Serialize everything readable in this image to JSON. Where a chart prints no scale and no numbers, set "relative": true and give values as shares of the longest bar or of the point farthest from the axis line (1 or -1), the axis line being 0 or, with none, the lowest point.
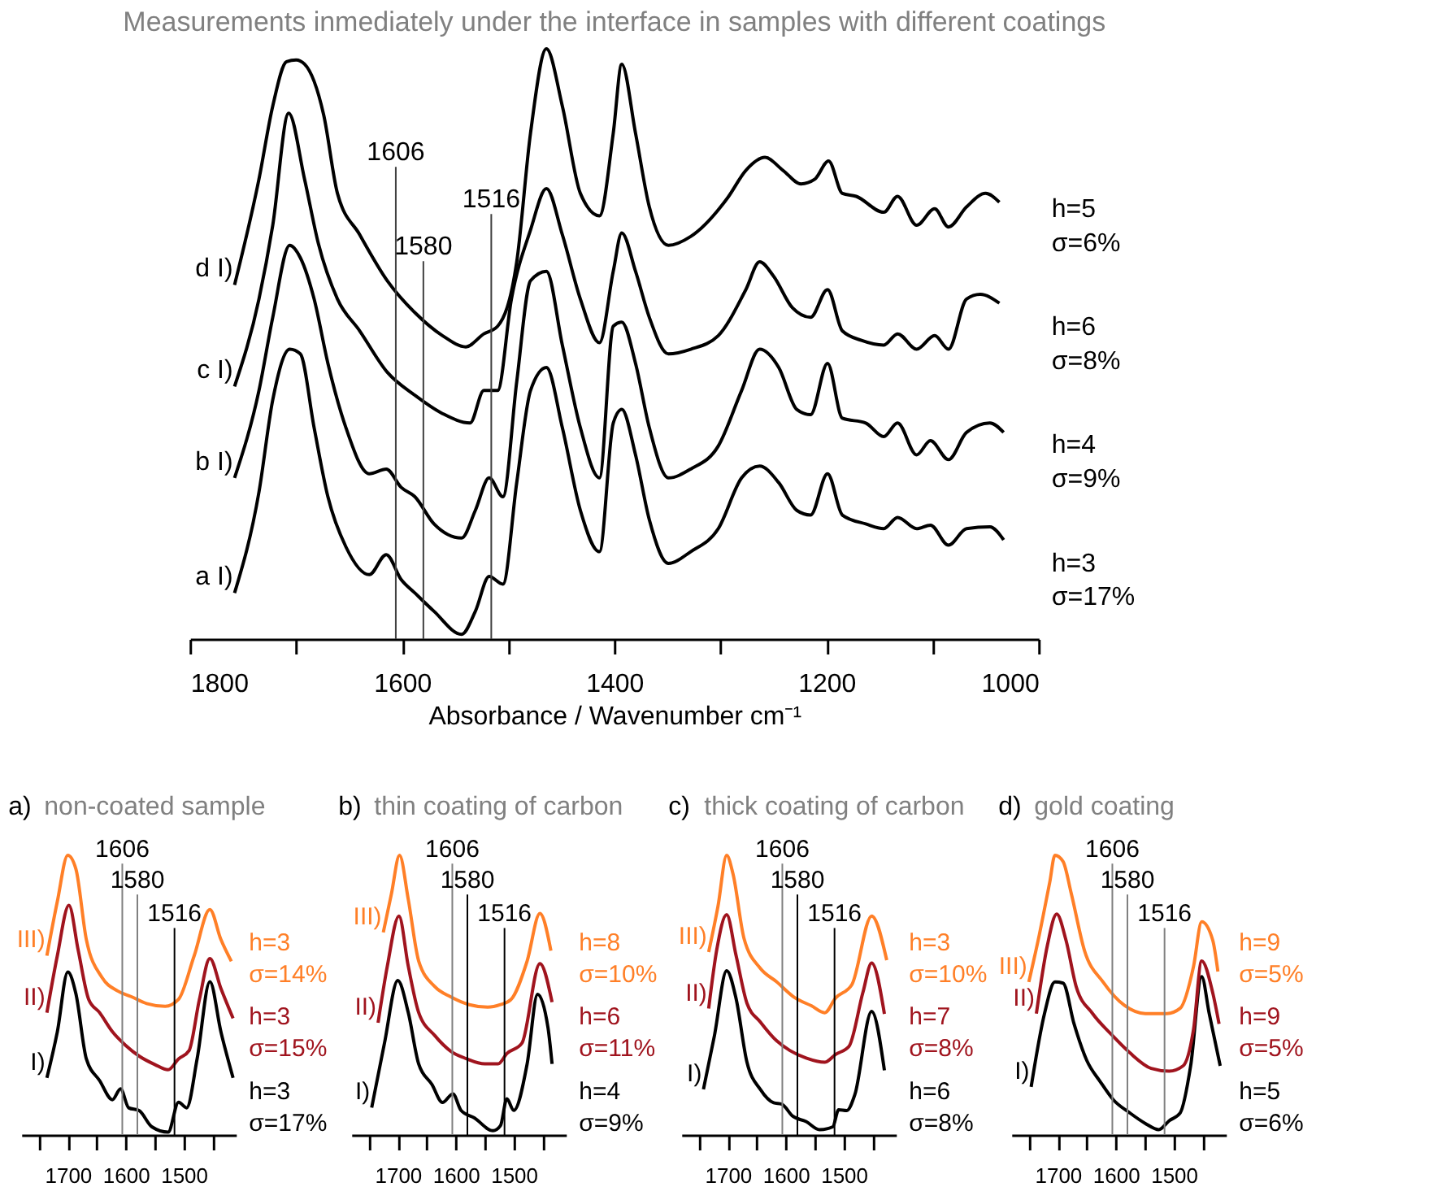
{
  "chart_data": [
    {
      "type": "line",
      "title": "Measurements inmediately under the interface in samples with different coatings",
      "xlabel": "Absorbance / Wavenumber cm⁻¹",
      "relative": true,
      "xlim": [
        1800,
        1000
      ],
      "xticks": [
        1800,
        {
          "value": 1700,
          "label": null
        },
        1600,
        {
          "value": 1500,
          "label": null
        },
        1400,
        {
          "value": 1300,
          "label": null
        },
        1200,
        {
          "value": 1100,
          "label": null
        },
        1000
      ],
      "series": [
        {
          "name": "a I)",
          "color": "#000000",
          "x": [
            1758,
            1735,
            1722,
            1706,
            1696,
            1683,
            1670,
            1653,
            1631,
            1615,
            1601,
            1588,
            1570,
            1544,
            1531,
            1518,
            1505,
            1492,
            1479,
            1464,
            1449,
            1432,
            1414,
            1401,
            1393,
            1380,
            1367,
            1349,
            1328,
            1302,
            1280,
            1263,
            1245,
            1228,
            1215,
            1199,
            1185,
            1163,
            1146,
            1133,
            1115,
            1102,
            1085,
            1068,
            1046,
            1033
          ],
          "values": [
            0.078,
            0.249,
            0.405,
            0.491,
            0.483,
            0.358,
            0.241,
            0.156,
            0.109,
            0.143,
            0.101,
            0.078,
            0.047,
            0.008,
            0.047,
            0.106,
            0.093,
            0.265,
            0.421,
            0.46,
            0.358,
            0.218,
            0.148,
            0.366,
            0.389,
            0.312,
            0.202,
            0.128,
            0.148,
            0.187,
            0.273,
            0.293,
            0.265,
            0.218,
            0.21,
            0.28,
            0.21,
            0.195,
            0.187,
            0.206,
            0.187,
            0.193,
            0.159,
            0.187,
            0.19,
            0.168
          ]
        },
        {
          "name": "b I)",
          "color": "#000000",
          "x": [
            1758,
            1735,
            1722,
            1706,
            1696,
            1683,
            1670,
            1653,
            1631,
            1615,
            1601,
            1588,
            1570,
            1544,
            1531,
            1518,
            1505,
            1492,
            1479,
            1464,
            1449,
            1432,
            1414,
            1401,
            1393,
            1380,
            1367,
            1349,
            1328,
            1302,
            1280,
            1263,
            1245,
            1228,
            1215,
            1199,
            1185,
            1163,
            1146,
            1133,
            1115,
            1102,
            1085,
            1068,
            1046,
            1033
          ],
          "values": [
            0.273,
            0.421,
            0.545,
            0.667,
            0.646,
            0.576,
            0.467,
            0.358,
            0.28,
            0.288,
            0.257,
            0.241,
            0.195,
            0.171,
            0.218,
            0.273,
            0.241,
            0.436,
            0.607,
            0.623,
            0.498,
            0.358,
            0.273,
            0.53,
            0.537,
            0.467,
            0.358,
            0.273,
            0.288,
            0.327,
            0.421,
            0.491,
            0.46,
            0.389,
            0.38,
            0.467,
            0.374,
            0.366,
            0.343,
            0.366,
            0.312,
            0.336,
            0.304,
            0.35,
            0.366,
            0.35
          ]
        },
        {
          "name": "c I)",
          "color": "#000000",
          "x": [
            1758,
            1735,
            1722,
            1707,
            1692,
            1679,
            1661,
            1640,
            1614,
            1588,
            1562,
            1536,
            1523,
            1510,
            1497,
            1479,
            1464,
            1449,
            1432,
            1414,
            1401,
            1393,
            1380,
            1367,
            1349,
            1328,
            1302,
            1276,
            1263,
            1250,
            1232,
            1215,
            1199,
            1185,
            1167,
            1146,
            1133,
            1115,
            1098,
            1085,
            1068,
            1055,
            1037
          ],
          "values": [
            0.428,
            0.576,
            0.701,
            0.891,
            0.779,
            0.67,
            0.576,
            0.522,
            0.452,
            0.413,
            0.382,
            0.366,
            0.421,
            0.421,
            0.576,
            0.693,
            0.763,
            0.685,
            0.576,
            0.502,
            0.623,
            0.688,
            0.623,
            0.545,
            0.483,
            0.491,
            0.514,
            0.592,
            0.639,
            0.615,
            0.561,
            0.545,
            0.592,
            0.522,
            0.506,
            0.498,
            0.517,
            0.491,
            0.514,
            0.491,
            0.576,
            0.584,
            0.569
          ]
        },
        {
          "name": "d I)",
          "color": "#000000",
          "x": [
            1758,
            1735,
            1722,
            1709,
            1700,
            1692,
            1674,
            1661,
            1640,
            1614,
            1588,
            1562,
            1540,
            1523,
            1510,
            1492,
            1479,
            1464,
            1449,
            1432,
            1414,
            1401,
            1393,
            1380,
            1367,
            1349,
            1328,
            1293,
            1276,
            1258,
            1241,
            1224,
            1211,
            1198,
            1185,
            1172,
            1146,
            1133,
            1115,
            1098,
            1085,
            1068,
            1050,
            1037
          ],
          "values": [
            0.6,
            0.779,
            0.903,
            0.978,
            0.981,
            0.974,
            0.888,
            0.755,
            0.685,
            0.607,
            0.553,
            0.514,
            0.495,
            0.517,
            0.53,
            0.639,
            0.857,
            1.0,
            0.903,
            0.755,
            0.717,
            0.857,
            0.974,
            0.857,
            0.732,
            0.667,
            0.682,
            0.748,
            0.794,
            0.816,
            0.794,
            0.771,
            0.779,
            0.81,
            0.755,
            0.75,
            0.723,
            0.75,
            0.701,
            0.729,
            0.698,
            0.732,
            0.755,
            0.74
          ]
        }
      ],
      "ref_lines": [
        {
          "axis": "x",
          "value": 1606,
          "label": "1606",
          "color": "#404040"
        },
        {
          "axis": "x",
          "value": 1580,
          "label": "1580",
          "color": "#404040"
        },
        {
          "axis": "x",
          "value": 1516,
          "label": "1516",
          "color": "#404040"
        }
      ],
      "annotations": [
        "h=3",
        "σ=17%",
        "h=4",
        "σ=9%",
        "h=6",
        "σ=8%",
        "h=5",
        "σ=6%"
      ]
    },
    {
      "type": "line",
      "title": "a) non-coated sample",
      "relative": true,
      "xlim": [
        1780,
        1410
      ],
      "xticks": [
        {
          "value": 1750,
          "label": null
        },
        1700,
        {
          "value": 1650,
          "label": null
        },
        1600,
        {
          "value": 1550,
          "label": null
        },
        1500,
        {
          "value": 1450,
          "label": null
        }
      ],
      "series": [
        {
          "name": "I)",
          "color": "#000000",
          "x": [
            1736,
            1718,
            1700,
            1686,
            1668,
            1645,
            1623,
            1609,
            1595,
            1577,
            1555,
            1527,
            1509,
            1495,
            1477,
            1455,
            1436,
            1415
          ],
          "values": [
            0.204,
            0.369,
            0.583,
            0.505,
            0.272,
            0.194,
            0.126,
            0.165,
            0.097,
            0.087,
            0.029,
            0.01,
            0.117,
            0.097,
            0.272,
            0.548,
            0.369,
            0.204
          ]
        },
        {
          "name": "II)",
          "color": "#a0141e",
          "x": [
            1736,
            1718,
            1698,
            1682,
            1664,
            1645,
            1623,
            1600,
            1577,
            1550,
            1527,
            1509,
            1491,
            1473,
            1455,
            1436,
            1415
          ],
          "values": [
            0.437,
            0.641,
            0.821,
            0.66,
            0.485,
            0.437,
            0.369,
            0.32,
            0.282,
            0.252,
            0.233,
            0.272,
            0.301,
            0.485,
            0.631,
            0.524,
            0.417
          ]
        },
        {
          "name": "III)",
          "color": "#ff7f27",
          "x": [
            1736,
            1718,
            1700,
            1686,
            1668,
            1641,
            1614,
            1591,
            1564,
            1532,
            1509,
            1482,
            1455,
            1436,
            1418
          ],
          "values": [
            0.641,
            0.835,
            1.0,
            0.951,
            0.699,
            0.563,
            0.515,
            0.495,
            0.47,
            0.46,
            0.485,
            0.641,
            0.806,
            0.699,
            0.621
          ]
        }
      ],
      "ref_lines": [
        {
          "axis": "x",
          "value": 1606,
          "label": "1606",
          "color": "#808080"
        },
        {
          "axis": "x",
          "value": 1580,
          "label": "1580",
          "color": "#808080"
        },
        {
          "axis": "x",
          "value": 1516,
          "label": "1516",
          "color": "#000000"
        }
      ],
      "annotations": [
        "h=3",
        "σ=17%",
        "h=3",
        "σ=15%",
        "h=3",
        "σ=14%"
      ]
    },
    {
      "type": "line",
      "title": "b) thin coating of carbon",
      "relative": true,
      "xlim": [
        1780,
        1410
      ],
      "xticks": [
        {
          "value": 1750,
          "label": null
        },
        1700,
        {
          "value": 1650,
          "label": null
        },
        1600,
        {
          "value": 1550,
          "label": null
        },
        1500,
        {
          "value": 1450,
          "label": null
        }
      ],
      "series": [
        {
          "name": "I)",
          "color": "#000000",
          "x": [
            1745,
            1723,
            1700,
            1682,
            1664,
            1641,
            1623,
            1605,
            1591,
            1568,
            1536,
            1523,
            1512,
            1500,
            1477,
            1459,
            1441,
            1434
          ],
          "values": [
            0.098,
            0.328,
            0.552,
            0.438,
            0.254,
            0.18,
            0.116,
            0.147,
            0.088,
            0.061,
            0.015,
            0.033,
            0.129,
            0.088,
            0.254,
            0.503,
            0.383,
            0.254
          ]
        },
        {
          "name": "II)",
          "color": "#a0141e",
          "x": [
            1734,
            1718,
            1698,
            1682,
            1664,
            1636,
            1609,
            1582,
            1550,
            1527,
            1512,
            1486,
            1455,
            1434
          ],
          "values": [
            0.401,
            0.604,
            0.783,
            0.604,
            0.438,
            0.355,
            0.3,
            0.273,
            0.254,
            0.254,
            0.291,
            0.328,
            0.613,
            0.475
          ]
        },
        {
          "name": "III)",
          "color": "#ff7f27",
          "x": [
            1725,
            1711,
            1697,
            1682,
            1664,
            1636,
            1609,
            1577,
            1545,
            1523,
            1505,
            1477,
            1455,
            1436
          ],
          "values": [
            0.724,
            0.862,
            1.0,
            0.843,
            0.622,
            0.53,
            0.494,
            0.466,
            0.457,
            0.466,
            0.484,
            0.622,
            0.792,
            0.659
          ]
        }
      ],
      "ref_lines": [
        {
          "axis": "x",
          "value": 1606,
          "label": "1606",
          "color": "#808080"
        },
        {
          "axis": "x",
          "value": 1580,
          "label": "1580",
          "color": "#000000"
        },
        {
          "axis": "x",
          "value": 1516,
          "label": "1516",
          "color": "#000000"
        }
      ],
      "annotations": [
        "h=4",
        "σ=9%",
        "h=6",
        "σ=11%",
        "h=8",
        "σ=10%"
      ]
    },
    {
      "type": "line",
      "title": "c) thick coating of carbon",
      "relative": true,
      "xlim": [
        1780,
        1410
      ],
      "xticks": [
        {
          "value": 1750,
          "label": null
        },
        1700,
        {
          "value": 1650,
          "label": null
        },
        1600,
        {
          "value": 1550,
          "label": null
        },
        1500,
        {
          "value": 1450,
          "label": null
        }
      ],
      "series": [
        {
          "name": "I)",
          "color": "#000000",
          "x": [
            1742,
            1723,
            1702,
            1686,
            1667,
            1644,
            1621,
            1607,
            1588,
            1565,
            1542,
            1519,
            1509,
            1495,
            1481,
            1452,
            1430
          ],
          "values": [
            0.163,
            0.356,
            0.587,
            0.49,
            0.26,
            0.163,
            0.115,
            0.11,
            0.067,
            0.048,
            0.019,
            0.029,
            0.09,
            0.087,
            0.144,
            0.442,
            0.231
          ]
        },
        {
          "name": "II)",
          "color": "#a0141e",
          "x": [
            1733,
            1719,
            1702,
            1686,
            1667,
            1644,
            1616,
            1593,
            1565,
            1533,
            1514,
            1491,
            1467,
            1452,
            1430
          ],
          "values": [
            0.452,
            0.663,
            0.788,
            0.644,
            0.471,
            0.404,
            0.337,
            0.302,
            0.275,
            0.26,
            0.288,
            0.317,
            0.51,
            0.615,
            0.433
          ]
        },
        {
          "name": "III)",
          "color": "#ff7f27",
          "x": [
            1733,
            1717,
            1702,
            1691,
            1672,
            1644,
            1616,
            1584,
            1556,
            1533,
            1514,
            1486,
            1452,
            1426
          ],
          "values": [
            0.654,
            0.817,
            1.0,
            0.933,
            0.702,
            0.596,
            0.548,
            0.49,
            0.462,
            0.437,
            0.49,
            0.538,
            0.783,
            0.625
          ]
        }
      ],
      "ref_lines": [
        {
          "axis": "x",
          "value": 1606,
          "label": "1606",
          "color": "#808080"
        },
        {
          "axis": "x",
          "value": 1580,
          "label": "1580",
          "color": "#000000"
        },
        {
          "axis": "x",
          "value": 1516,
          "label": "1516",
          "color": "#000000"
        }
      ],
      "annotations": [
        "h=6",
        "σ=8%",
        "h=7",
        "σ=8%",
        "h=3",
        "σ=10%"
      ]
    },
    {
      "type": "line",
      "title": "d) gold coating",
      "relative": true,
      "xlim": [
        1780,
        1410
      ],
      "xticks": [
        {
          "value": 1750,
          "label": null
        },
        1700,
        {
          "value": 1650,
          "label": null
        },
        1600,
        {
          "value": 1550,
          "label": null
        },
        1500,
        {
          "value": 1450,
          "label": null
        }
      ],
      "series": [
        {
          "name": "I)",
          "color": "#000000",
          "x": [
            1746,
            1723,
            1705,
            1691,
            1672,
            1650,
            1627,
            1604,
            1576,
            1549,
            1526,
            1508,
            1489,
            1471,
            1452,
            1439,
            1420
          ],
          "values": [
            0.172,
            0.434,
            0.547,
            0.543,
            0.397,
            0.266,
            0.191,
            0.125,
            0.079,
            0.041,
            0.019,
            0.051,
            0.079,
            0.247,
            0.566,
            0.434,
            0.247
          ]
        },
        {
          "name": "II)",
          "color": "#a0141e",
          "x": [
            1737,
            1718,
            1702,
            1686,
            1668,
            1640,
            1608,
            1576,
            1539,
            1508,
            1484,
            1466,
            1452,
            1433,
            1422
          ],
          "values": [
            0.434,
            0.678,
            0.79,
            0.697,
            0.528,
            0.434,
            0.36,
            0.294,
            0.238,
            0.228,
            0.247,
            0.378,
            0.622,
            0.509,
            0.397
          ]
        },
        {
          "name": "III)",
          "color": "#ff7f27",
          "x": [
            1750,
            1732,
            1714,
            1705,
            1691,
            1677,
            1654,
            1622,
            1585,
            1549,
            1512,
            1489,
            1466,
            1452,
            1433,
            1424
          ],
          "values": [
            0.547,
            0.715,
            0.903,
            1.0,
            0.978,
            0.865,
            0.659,
            0.547,
            0.463,
            0.434,
            0.434,
            0.453,
            0.603,
            0.762,
            0.697,
            0.584
          ]
        }
      ],
      "ref_lines": [
        {
          "axis": "x",
          "value": 1606,
          "label": "1606",
          "color": "#808080"
        },
        {
          "axis": "x",
          "value": 1580,
          "label": "1580",
          "color": "#808080"
        },
        {
          "axis": "x",
          "value": 1516,
          "label": "1516",
          "color": "#808080"
        }
      ],
      "annotations": [
        "h=5",
        "σ=6%",
        "h=9",
        "σ=5%",
        "h=9",
        "σ=5%"
      ]
    }
  ]
}
